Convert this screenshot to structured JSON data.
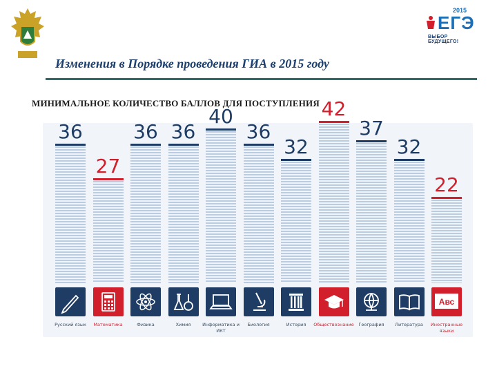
{
  "header": {
    "title": "Изменения в Порядке проведения ГИА в 2015 году",
    "subtitle": "МИНИМАЛЬНОЕ КОЛИЧЕСТВО БАЛЛОВ ДЛЯ ПОСТУПЛЕНИЯ"
  },
  "logo": {
    "brand": "ЕГЭ",
    "year": "2015",
    "tagline": "ВЫБОР БУДУЩЕГО!"
  },
  "colors": {
    "accent": "#d11f2c",
    "tile_dark": "#1f3d64",
    "score_dark": "#1f3d64",
    "panel": "#f1f5fa"
  },
  "subjects": [
    {
      "name": "Русский язык",
      "score": "36",
      "highlight": false,
      "icon": "pen-icon"
    },
    {
      "name": "Математика",
      "score": "27",
      "highlight": true,
      "icon": "calculator-icon"
    },
    {
      "name": "Физика",
      "score": "36",
      "highlight": false,
      "icon": "atom-icon"
    },
    {
      "name": "Химия",
      "score": "36",
      "highlight": false,
      "icon": "flask-icon"
    },
    {
      "name": "Информатика и ИКТ",
      "score": "40",
      "highlight": false,
      "icon": "laptop-icon"
    },
    {
      "name": "Биология",
      "score": "36",
      "highlight": false,
      "icon": "microscope-icon"
    },
    {
      "name": "История",
      "score": "32",
      "highlight": false,
      "icon": "column-icon"
    },
    {
      "name": "Обществознание",
      "score": "42",
      "highlight": true,
      "icon": "graduation-cap-icon"
    },
    {
      "name": "География",
      "score": "37",
      "highlight": false,
      "icon": "globe-icon"
    },
    {
      "name": "Литература",
      "score": "32",
      "highlight": false,
      "icon": "book-icon"
    },
    {
      "name": "Иностранные языки",
      "score": "22",
      "highlight": true,
      "icon": "abc-icon",
      "icon_text": "Авс"
    }
  ]
}
